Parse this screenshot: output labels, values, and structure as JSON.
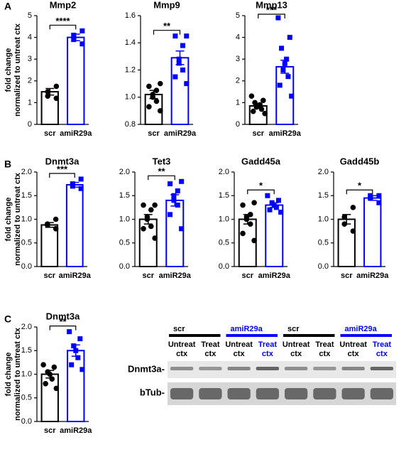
{
  "chart_data": [
    {
      "type": "bar",
      "panel": "A",
      "title": "Mmp2",
      "ylabel": [
        "fold change",
        "normalized  to untreat ctx"
      ],
      "categories": [
        "scr",
        "amiR29a"
      ],
      "values": [
        1.5,
        4.0
      ],
      "errors": [
        0.15,
        0.15
      ],
      "colors": [
        "#000000",
        "#0000ff"
      ],
      "markers": [
        "circle",
        "square"
      ],
      "points": [
        [
          1.2,
          1.3,
          1.5,
          1.75
        ],
        [
          3.7,
          3.9,
          4.1,
          4.3
        ]
      ],
      "significance": "****",
      "ylim": [
        0,
        5
      ],
      "yticks": [
        0,
        1,
        2,
        3,
        4,
        5
      ]
    },
    {
      "type": "bar",
      "title": "Mmp9",
      "categories": [
        "scr",
        "amiR29a"
      ],
      "values": [
        1.02,
        1.29
      ],
      "errors": [
        0.03,
        0.05
      ],
      "colors": [
        "#000000",
        "#0000ff"
      ],
      "markers": [
        "circle",
        "square"
      ],
      "points": [
        [
          0.9,
          0.93,
          0.97,
          1.0,
          1.02,
          1.05,
          1.08,
          1.1
        ],
        [
          1.1,
          1.15,
          1.2,
          1.25,
          1.28,
          1.38,
          1.45,
          1.45
        ]
      ],
      "significance": "**",
      "ylim": [
        0.8,
        1.6
      ],
      "yticks": [
        0.8,
        {
          "value": 1,
          "label": "1.0"
        },
        1.2,
        1.4,
        1.6
      ]
    },
    {
      "type": "bar",
      "title": "Mmp13",
      "categories": [
        "scr",
        "amiR29a"
      ],
      "values": [
        0.85,
        2.65
      ],
      "errors": [
        0.1,
        0.3
      ],
      "colors": [
        "#000000",
        "#0000ff"
      ],
      "markers": [
        "circle",
        "square"
      ],
      "points": [
        [
          0.5,
          0.6,
          0.7,
          0.8,
          0.85,
          0.9,
          1.0,
          1.1,
          1.3
        ],
        [
          1.3,
          1.8,
          2.2,
          2.5,
          2.8,
          3.0,
          3.5,
          4.0,
          4.9
        ]
      ],
      "significance": "***",
      "ylim": [
        0,
        5
      ],
      "yticks": [
        0,
        1,
        2,
        3,
        4,
        5
      ]
    },
    {
      "type": "bar",
      "panel": "B",
      "title": "Dnmt3a",
      "ylabel": [
        "fold change",
        "normalized  to untreat ctx"
      ],
      "categories": [
        "scr",
        "amiR29a"
      ],
      "values": [
        0.88,
        1.73
      ],
      "errors": [
        0.05,
        0.05
      ],
      "colors": [
        "#000000",
        "#0000ff"
      ],
      "markers": [
        "circle",
        "square"
      ],
      "points": [
        [
          0.8,
          0.88,
          0.9,
          1.0
        ],
        [
          1.65,
          1.7,
          1.75,
          1.85
        ]
      ],
      "significance": "***",
      "ylim": [
        0,
        2
      ],
      "yticks": [
        {
          "value": 0,
          "label": "0.0"
        },
        0.5,
        {
          "value": 1,
          "label": "1.0"
        },
        1.5,
        {
          "value": 2,
          "label": "2.0"
        }
      ]
    },
    {
      "type": "bar",
      "title": "Tet3",
      "categories": [
        "scr",
        "amiR29a"
      ],
      "values": [
        1.0,
        1.4
      ],
      "errors": [
        0.1,
        0.12
      ],
      "colors": [
        "#000000",
        "#0000ff"
      ],
      "markers": [
        "circle",
        "square"
      ],
      "points": [
        [
          0.6,
          0.8,
          0.85,
          1.0,
          1.05,
          1.2,
          1.3,
          1.3
        ],
        [
          0.8,
          1.1,
          1.3,
          1.4,
          1.5,
          1.6,
          1.75,
          1.8
        ]
      ],
      "significance": "**",
      "ylim": [
        0,
        2
      ],
      "yticks": [
        {
          "value": 0,
          "label": "0.0"
        },
        0.5,
        {
          "value": 1,
          "label": "1.0"
        },
        1.5,
        {
          "value": 2,
          "label": "2.0"
        }
      ]
    },
    {
      "type": "bar",
      "title": "Gadd45a",
      "categories": [
        "scr",
        "amiR29a"
      ],
      "values": [
        1.0,
        1.3
      ],
      "errors": [
        0.1,
        0.05
      ],
      "colors": [
        "#000000",
        "#0000ff"
      ],
      "markers": [
        "circle",
        "square"
      ],
      "points": [
        [
          0.55,
          0.7,
          0.9,
          1.0,
          1.05,
          1.1,
          1.3,
          1.35
        ],
        [
          1.15,
          1.2,
          1.25,
          1.3,
          1.35,
          1.4,
          1.5
        ]
      ],
      "significance": "*",
      "ylim": [
        0,
        2
      ],
      "yticks": [
        {
          "value": 0,
          "label": "0.0"
        },
        0.5,
        {
          "value": 1,
          "label": "1.0"
        },
        1.5,
        {
          "value": 2,
          "label": "2.0"
        }
      ]
    },
    {
      "type": "bar",
      "title": "Gadd45b",
      "categories": [
        "scr",
        "amiR29a"
      ],
      "values": [
        1.0,
        1.45
      ],
      "errors": [
        0.1,
        0.05
      ],
      "colors": [
        "#000000",
        "#0000ff"
      ],
      "markers": [
        "circle",
        "square"
      ],
      "points": [
        [
          0.75,
          0.9,
          1.05,
          1.25
        ],
        [
          1.35,
          1.45,
          1.5,
          1.5
        ]
      ],
      "significance": "*",
      "ylim": [
        0,
        2
      ],
      "yticks": [
        {
          "value": 0,
          "label": "0.0"
        },
        0.5,
        {
          "value": 1,
          "label": "1.0"
        },
        1.5,
        {
          "value": 2,
          "label": "2.0"
        }
      ]
    },
    {
      "type": "bar",
      "panel": "C",
      "title": "Dnmt3a",
      "ylabel": [
        "fold change",
        "normalized  to untreat ctx"
      ],
      "categories": [
        "scr",
        "amiR29a"
      ],
      "values": [
        1.0,
        1.5
      ],
      "errors": [
        0.08,
        0.12
      ],
      "colors": [
        "#000000",
        "#0000ff"
      ],
      "markers": [
        "circle",
        "square"
      ],
      "points": [
        [
          0.7,
          0.8,
          0.9,
          1.0,
          1.05,
          1.15,
          1.2
        ],
        [
          1.1,
          1.2,
          1.35,
          1.5,
          1.6,
          1.75,
          1.9
        ]
      ],
      "significance": "**",
      "ylim": [
        0,
        2
      ],
      "yticks": [
        {
          "value": 0,
          "label": "0.0"
        },
        0.5,
        {
          "value": 1,
          "label": "1.0"
        },
        1.5,
        {
          "value": 2,
          "label": "2.0"
        }
      ]
    }
  ],
  "blot": {
    "groups": [
      {
        "label": "scr",
        "color": "#000000",
        "lanes": [
          {
            "lines": [
              "Untreat",
              "ctx"
            ],
            "color": "#000000"
          },
          {
            "lines": [
              "Treat",
              "ctx"
            ],
            "color": "#000000"
          }
        ]
      },
      {
        "label": "amiR29a",
        "color": "#0000ff",
        "lanes": [
          {
            "lines": [
              "Untreat",
              "ctx"
            ],
            "color": "#000000"
          },
          {
            "lines": [
              "Treat",
              "ctx"
            ],
            "color": "#0000ff"
          }
        ]
      },
      {
        "label": "scr",
        "color": "#000000",
        "lanes": [
          {
            "lines": [
              "Untreat",
              "ctx"
            ],
            "color": "#000000"
          },
          {
            "lines": [
              "Treat",
              "ctx"
            ],
            "color": "#000000"
          }
        ]
      },
      {
        "label": "amiR29a",
        "color": "#0000ff",
        "lanes": [
          {
            "lines": [
              "Untreat",
              "ctx"
            ],
            "color": "#000000"
          },
          {
            "lines": [
              "Treat",
              "ctx"
            ],
            "color": "#0000ff"
          }
        ]
      }
    ],
    "rows": [
      "Dnmt3a-",
      "bTub-"
    ]
  }
}
